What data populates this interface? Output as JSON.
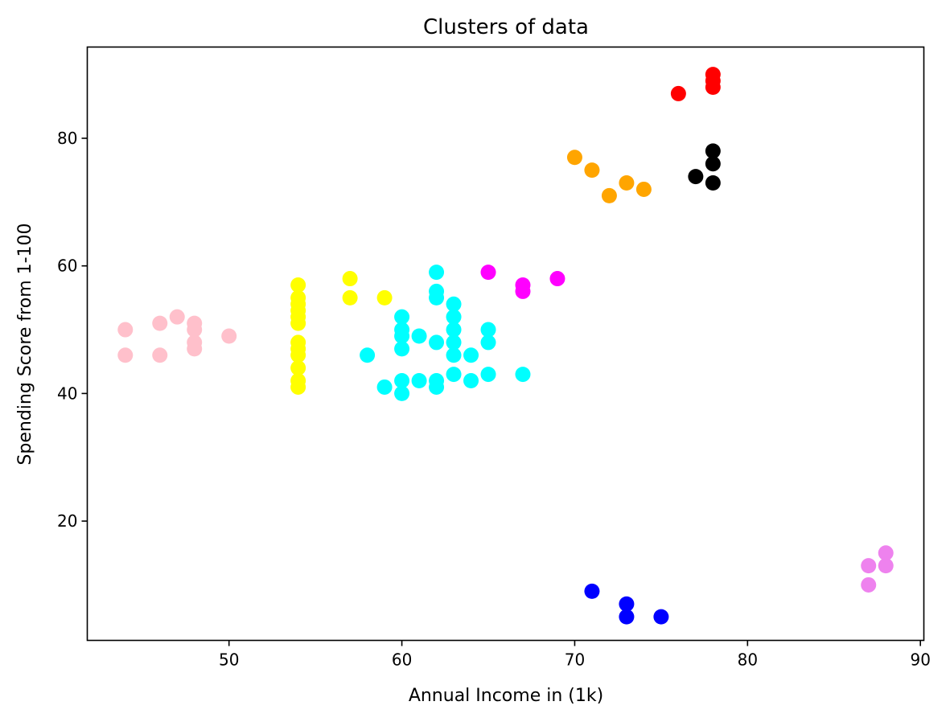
{
  "chart_data": {
    "type": "scatter",
    "title": "Clusters of data",
    "xlabel": "Annual Income in (1k)",
    "ylabel": "Spending Score from 1-100",
    "xlim": [
      41.8,
      90.2
    ],
    "ylim": [
      1.3,
      94.3
    ],
    "xticks": [
      50,
      60,
      70,
      80,
      90
    ],
    "yticks": [
      20,
      40,
      60,
      80
    ],
    "grid": false,
    "series": [
      {
        "color": "#ffc0cb",
        "points": [
          [
            44,
            50
          ],
          [
            44,
            46
          ],
          [
            46,
            51
          ],
          [
            46,
            46
          ],
          [
            47,
            52
          ],
          [
            48,
            51
          ],
          [
            48,
            50
          ],
          [
            48,
            48
          ],
          [
            48,
            47
          ],
          [
            50,
            49
          ]
        ]
      },
      {
        "color": "#ffff00",
        "points": [
          [
            54,
            57
          ],
          [
            54,
            55
          ],
          [
            54,
            54
          ],
          [
            54,
            53
          ],
          [
            54,
            52
          ],
          [
            54,
            51
          ],
          [
            54,
            48
          ],
          [
            54,
            47
          ],
          [
            54,
            46
          ],
          [
            54,
            44
          ],
          [
            54,
            42
          ],
          [
            54,
            41
          ],
          [
            57,
            58
          ],
          [
            57,
            55
          ],
          [
            59,
            55
          ]
        ]
      },
      {
        "color": "#00ffff",
        "points": [
          [
            58,
            46
          ],
          [
            59,
            41
          ],
          [
            60,
            52
          ],
          [
            60,
            50
          ],
          [
            60,
            49
          ],
          [
            60,
            47
          ],
          [
            60,
            42
          ],
          [
            60,
            40
          ],
          [
            61,
            49
          ],
          [
            61,
            42
          ],
          [
            62,
            59
          ],
          [
            62,
            56
          ],
          [
            62,
            55
          ],
          [
            62,
            48
          ],
          [
            62,
            42
          ],
          [
            62,
            41
          ],
          [
            63,
            54
          ],
          [
            63,
            52
          ],
          [
            63,
            50
          ],
          [
            63,
            48
          ],
          [
            63,
            46
          ],
          [
            63,
            43
          ],
          [
            64,
            46
          ],
          [
            64,
            42
          ],
          [
            65,
            50
          ],
          [
            65,
            48
          ],
          [
            65,
            43
          ],
          [
            67,
            43
          ]
        ]
      },
      {
        "color": "#ff00ff",
        "points": [
          [
            65,
            59
          ],
          [
            67,
            57
          ],
          [
            67,
            56
          ],
          [
            69,
            58
          ]
        ]
      },
      {
        "color": "#ffa500",
        "points": [
          [
            70,
            77
          ],
          [
            71,
            75
          ],
          [
            72,
            71
          ],
          [
            73,
            73
          ],
          [
            74,
            72
          ]
        ]
      },
      {
        "color": "#ff0000",
        "points": [
          [
            76,
            87
          ],
          [
            78,
            90
          ],
          [
            78,
            89
          ],
          [
            78,
            88
          ]
        ]
      },
      {
        "color": "#000000",
        "points": [
          [
            77,
            74
          ],
          [
            78,
            78
          ],
          [
            78,
            76
          ],
          [
            78,
            73
          ]
        ]
      },
      {
        "color": "#0000ff",
        "points": [
          [
            71,
            9
          ],
          [
            73,
            7
          ],
          [
            73,
            5
          ],
          [
            75,
            5
          ]
        ]
      },
      {
        "color": "#ee82ee",
        "points": [
          [
            87,
            13
          ],
          [
            87,
            10
          ],
          [
            88,
            15
          ],
          [
            88,
            13
          ]
        ]
      }
    ]
  }
}
